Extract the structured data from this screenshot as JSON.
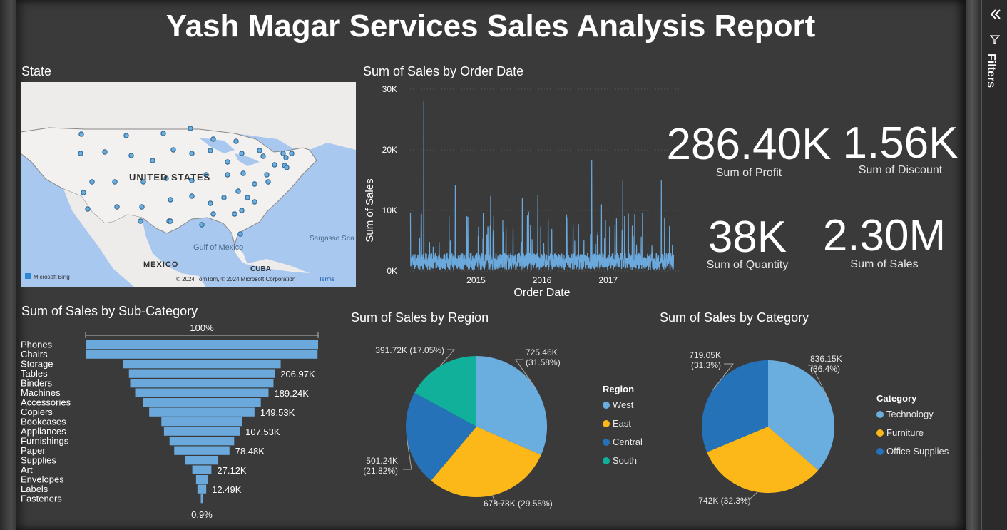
{
  "report": {
    "title": "Yash Magar Services Sales Analysis Report",
    "filters_label": "Filters"
  },
  "colors": {
    "bar": "#6ba8dc",
    "line": "#6ba8dc",
    "west": "#6aaee0",
    "east": "#fbb818",
    "central": "#2572b8",
    "south": "#10b09a",
    "technology": "#6aaee0",
    "furniture": "#fbb818",
    "office_supplies": "#2572b8",
    "background": "#3a3a3a"
  },
  "map": {
    "title": "State",
    "country_label": "UNITED STATES",
    "mexico_label": "MEXICO",
    "gulf_label": "Gulf of Mexico",
    "cuba_label": "CUBA",
    "sargasso_label": "Sargasso Sea",
    "attribution": "© 2024 TomTom, © 2024 Microsoft Corporation",
    "terms": "Terms",
    "bing_logo": "Microsoft Bing"
  },
  "kpis": [
    {
      "value": "286.40K",
      "label": "Sum of Profit"
    },
    {
      "value": "1.56K",
      "label": "Sum of Discount"
    },
    {
      "value": "38K",
      "label": "Sum of Quantity"
    },
    {
      "value": "2.30M",
      "label": "Sum of Sales"
    }
  ],
  "chart_data": [
    {
      "type": "line",
      "title": "Sum of Sales by Order Date",
      "xlabel": "Order Date",
      "ylabel": "Sum of Sales",
      "ylim": [
        0,
        30000
      ],
      "y_ticks": [
        "0K",
        "10K",
        "20K",
        "30K"
      ],
      "x_ticks": [
        "2015",
        "2016",
        "2017"
      ],
      "x_range": [
        "2014-01-01",
        "2017-12-31"
      ],
      "grid": true,
      "notable_peaks": [
        {
          "date": "2014-03-18",
          "value": 28100
        },
        {
          "date": "2014-09-08",
          "value": 14200
        },
        {
          "date": "2015-03-23",
          "value": 12400
        },
        {
          "date": "2015-09-14",
          "value": 12100
        },
        {
          "date": "2015-12-09",
          "value": 12500
        },
        {
          "date": "2016-10-02",
          "value": 18300
        },
        {
          "date": "2016-11-25",
          "value": 11000
        },
        {
          "date": "2017-03-23",
          "value": 14900
        },
        {
          "date": "2017-10-22",
          "value": 15000
        }
      ]
    },
    {
      "type": "bar",
      "title": "Sum of Sales by Sub-Category",
      "orientation": "funnel",
      "top_percent_label": "100%",
      "bottom_percent_label": "0.9%",
      "categories": [
        "Phones",
        "Chairs",
        "Storage",
        "Tables",
        "Binders",
        "Machines",
        "Accessories",
        "Copiers",
        "Bookcases",
        "Appliances",
        "Furnishings",
        "Paper",
        "Supplies",
        "Art",
        "Envelopes",
        "Labels",
        "Fasteners"
      ],
      "values": [
        330007,
        328449,
        223844,
        206966,
        203413,
        189239,
        167380,
        149528,
        114880,
        107532,
        91705,
        78479,
        46674,
        27119,
        16476,
        12486,
        3024
      ],
      "value_labels": [
        "",
        "",
        "",
        "206.97K",
        "",
        "189.24K",
        "",
        "149.53K",
        "",
        "107.53K",
        "",
        "78.48K",
        "",
        "27.12K",
        "",
        "12.49K",
        ""
      ]
    },
    {
      "type": "pie",
      "title": "Sum of Sales by Region",
      "legend_title": "Region",
      "legend": "right",
      "slices": [
        {
          "name": "West",
          "value": 725460,
          "label": "725.46K (31.58%)"
        },
        {
          "name": "East",
          "value": 678780,
          "label": "678.78K (29.55%)"
        },
        {
          "name": "Central",
          "value": 501240,
          "label": "501.24K (21.82%)"
        },
        {
          "name": "South",
          "value": 391720,
          "label": "391.72K (17.05%)"
        }
      ]
    },
    {
      "type": "pie",
      "title": "Sum of Sales by Category",
      "legend_title": "Category",
      "legend": "right",
      "slices": [
        {
          "name": "Technology",
          "value": 836150,
          "label": "836.15K (36.4%)"
        },
        {
          "name": "Furniture",
          "value": 742000,
          "label": "742K (32.3%)"
        },
        {
          "name": "Office Supplies",
          "value": 719050,
          "label": "719.05K (31.3%)"
        }
      ]
    }
  ]
}
